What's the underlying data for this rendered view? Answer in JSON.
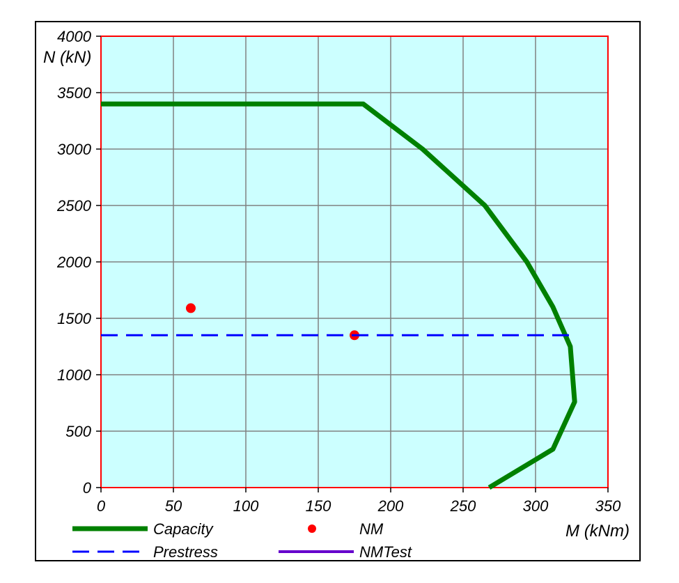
{
  "chart_data": {
    "type": "line",
    "xlabel": "M (kNm)",
    "ylabel": "N (kN)",
    "xlim": [
      0,
      350
    ],
    "ylim": [
      0,
      4000
    ],
    "x_ticks": [
      0,
      50,
      100,
      150,
      200,
      250,
      300,
      350
    ],
    "y_ticks": [
      0,
      500,
      1000,
      1500,
      2000,
      2500,
      3000,
      3500,
      4000
    ],
    "grid": true,
    "legend_position": "bottom",
    "colors": {
      "plot_background": "#ccffff",
      "grid": "#808080",
      "plot_border": "#ff0000",
      "capacity": "#008000",
      "nm": "#ff0000",
      "prestress": "#0000ff",
      "nmtest": "#6600cc"
    },
    "series": [
      {
        "name": "Capacity",
        "style": "solid-thick",
        "x": [
          0,
          181,
          222,
          265,
          294,
          312,
          324,
          327,
          312,
          268
        ],
        "y": [
          3400,
          3400,
          3000,
          2500,
          2000,
          1600,
          1250,
          760,
          340,
          0
        ]
      },
      {
        "name": "NM",
        "style": "marker",
        "x": [
          62,
          175
        ],
        "y": [
          1590,
          1350
        ]
      },
      {
        "name": "Prestress",
        "style": "dashed",
        "x": [
          0,
          328
        ],
        "y": [
          1350,
          1350
        ]
      },
      {
        "name": "NMTest",
        "style": "solid",
        "x": [],
        "y": []
      }
    ]
  }
}
